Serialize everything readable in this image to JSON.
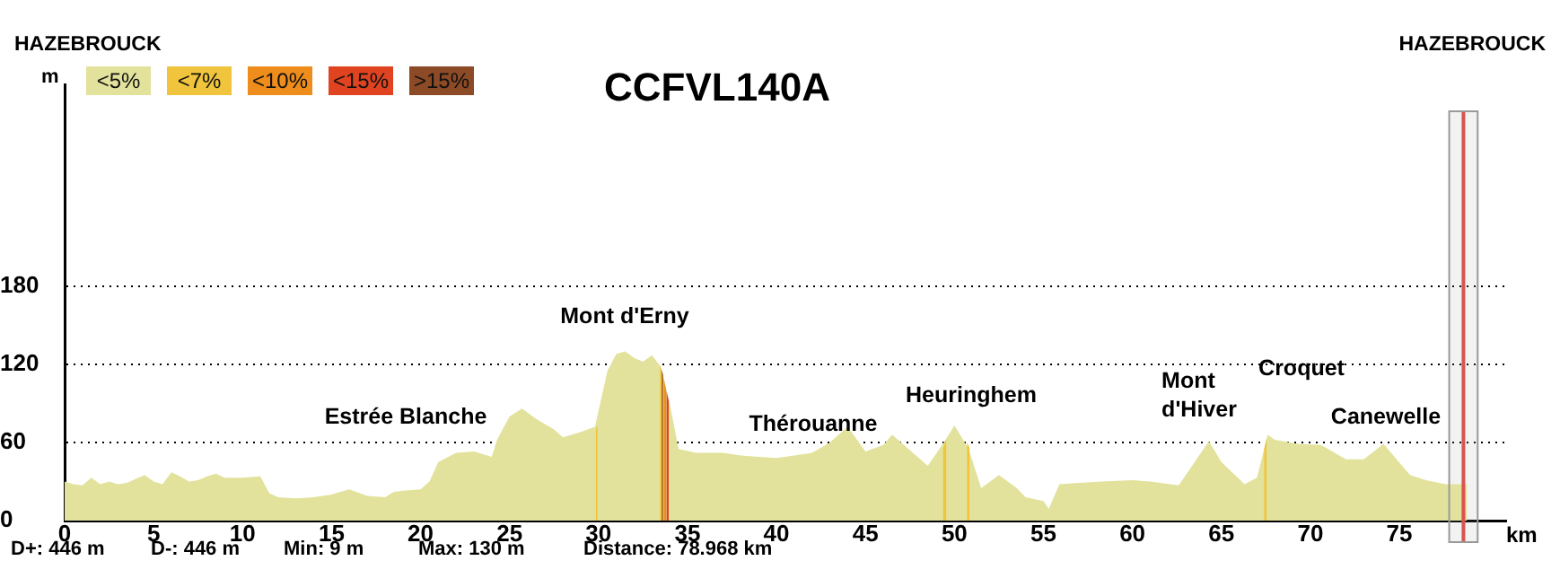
{
  "chart_data": {
    "type": "area",
    "title": "CCFVL140A",
    "xlabel": "km",
    "ylabel": "m",
    "xlim": [
      0,
      81
    ],
    "ylim": [
      0,
      335
    ],
    "xticks": [
      0,
      5,
      10,
      15,
      20,
      25,
      30,
      35,
      40,
      45,
      50,
      55,
      60,
      65,
      70,
      75
    ],
    "yticks": [
      0,
      60,
      120,
      180
    ],
    "grid": "y",
    "legend": "top left",
    "series": [
      {
        "name": "<5%",
        "color": "#e2e29c",
        "x": [
          0,
          0.5,
          1,
          1.5,
          2,
          2.5,
          3,
          3.5,
          4,
          4.5,
          5,
          5.5,
          6,
          6.5,
          7,
          7.5,
          8,
          8.5,
          9,
          10,
          11,
          11.5,
          12,
          13,
          14,
          15,
          15.5,
          16,
          17,
          18,
          18.5,
          19,
          20,
          20.5,
          21,
          22,
          23,
          24,
          24.3,
          25,
          25.7,
          26.5,
          27.5,
          28,
          29,
          29.8,
          30.5,
          31,
          31.5,
          32,
          32.5,
          33,
          33.5,
          34,
          34.5,
          35.5,
          37,
          38,
          39,
          40,
          41,
          42,
          43,
          44,
          45,
          46,
          46.5,
          47,
          48,
          48.5,
          49.5,
          50,
          50.8,
          51.5,
          52.5,
          53.5,
          54,
          55,
          55.3,
          55.9,
          57,
          58.3,
          60,
          61,
          62.6,
          64.3,
          65,
          66.3,
          67,
          67.6,
          68,
          69.3,
          70.6,
          72,
          73,
          74.1,
          75.6,
          76.5,
          77.6,
          78.8
        ],
        "values": [
          30,
          28,
          27,
          33,
          28,
          30,
          28,
          29,
          32,
          35,
          30,
          28,
          37,
          34,
          30,
          31,
          34,
          36,
          33,
          33,
          34,
          21,
          18,
          17,
          18,
          20,
          22,
          24,
          19,
          18,
          22,
          23,
          24,
          30,
          45,
          52,
          53,
          49,
          62,
          80,
          86,
          78,
          70,
          64,
          68,
          72,
          115,
          128,
          130,
          125,
          122,
          127,
          118,
          90,
          55,
          52,
          52,
          50,
          49,
          48,
          50,
          52,
          60,
          72,
          53,
          58,
          66,
          60,
          48,
          42,
          62,
          73,
          55,
          25,
          35,
          25,
          18,
          15,
          9,
          28,
          29,
          30,
          31,
          30,
          27,
          61,
          45,
          28,
          33,
          66,
          62,
          59,
          58,
          47,
          47,
          59,
          35,
          31,
          28,
          28
        ]
      },
      {
        "name": "<7%",
        "color": "#f0c43c",
        "x": [
          29.85,
          29.95,
          29.96,
          33.45,
          33.65,
          33.66,
          49.35,
          49.55,
          49.56,
          50.7,
          50.85,
          50.86,
          67.4,
          67.55
        ],
        "values": [
          70,
          73,
          null,
          120,
          110,
          null,
          55,
          63,
          null,
          60,
          56,
          null,
          55,
          64
        ]
      },
      {
        "name": "<10%",
        "color": "#ee8c1c",
        "x": [
          33.66,
          33.8
        ],
        "values": [
          110,
          100
        ]
      },
      {
        "name": "<15%",
        "color": "#e0431f",
        "x": [
          33.81,
          33.95
        ],
        "values": [
          100,
          92
        ]
      },
      {
        "name": ">15%",
        "color": "#8c4a26",
        "x": [
          33.55,
          33.63
        ],
        "values": [
          116,
          112
        ]
      }
    ],
    "ref_lines": [
      {
        "axis": "x",
        "value": 78.6,
        "color": "#d9534f"
      }
    ],
    "bands": [
      {
        "axis": "x",
        "from": 77.8,
        "to": 79.4,
        "color": "#999999"
      }
    ],
    "annotations": [
      "HAZEBROUCK",
      "HAZEBROUCK",
      "D+: 446 m",
      "D-: 446 m",
      "Min: 9 m",
      "Max: 130 m",
      "Distance: 78.968 km",
      "Estrée Blanche",
      "Mont d'Erny",
      "Thérouanne",
      "Heuringhem",
      "Mont\nd'Hiver",
      "Croquet",
      "Canewelle"
    ]
  }
}
